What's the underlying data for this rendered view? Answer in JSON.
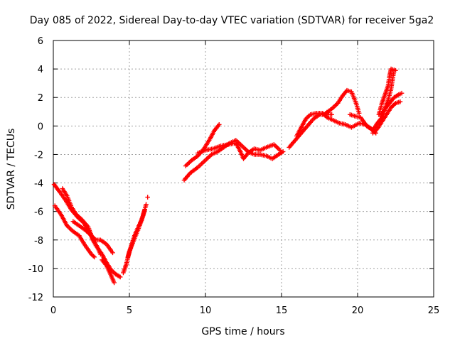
{
  "chart_data": {
    "type": "scatter",
    "title": "Day 085 of 2022, Sidereal Day-to-day VTEC variation (SDTVAR) for receiver 5ga2",
    "xlabel": "GPS time / hours",
    "ylabel": "SDTVAR / TECUs",
    "xlim": [
      0,
      25
    ],
    "ylim": [
      -12,
      6
    ],
    "xticks": [
      0,
      5,
      10,
      15,
      20,
      25
    ],
    "yticks": [
      -12,
      -10,
      -8,
      -6,
      -4,
      -2,
      0,
      2,
      4,
      6
    ],
    "grid": true,
    "marker": "plus",
    "color": "#ff0000",
    "tracks": [
      [
        [
          0.05,
          -4.1
        ],
        [
          0.4,
          -4.6
        ],
        [
          0.8,
          -5.2
        ],
        [
          1.2,
          -5.9
        ],
        [
          1.6,
          -6.4
        ],
        [
          2.0,
          -6.8
        ],
        [
          2.4,
          -7.5
        ],
        [
          2.8,
          -8.4
        ],
        [
          3.2,
          -9.0
        ],
        [
          3.5,
          -9.6
        ],
        [
          3.8,
          -10.1
        ],
        [
          4.1,
          -10.4
        ],
        [
          4.4,
          -10.6
        ]
      ],
      [
        [
          0.1,
          -5.6
        ],
        [
          0.5,
          -6.2
        ],
        [
          0.9,
          -7.0
        ],
        [
          1.3,
          -7.4
        ],
        [
          1.7,
          -7.7
        ],
        [
          2.1,
          -8.4
        ],
        [
          2.5,
          -9.0
        ],
        [
          2.7,
          -9.2
        ]
      ],
      [
        [
          0.6,
          -4.4
        ],
        [
          0.9,
          -4.9
        ],
        [
          1.2,
          -5.7
        ],
        [
          1.5,
          -6.2
        ],
        [
          1.9,
          -6.6
        ],
        [
          2.3,
          -7.1
        ],
        [
          2.6,
          -8.0
        ],
        [
          2.9,
          -8.5
        ],
        [
          3.1,
          -9.0
        ]
      ],
      [
        [
          1.3,
          -6.7
        ],
        [
          1.7,
          -7.0
        ],
        [
          2.1,
          -7.3
        ],
        [
          2.4,
          -7.6
        ],
        [
          2.8,
          -8.0
        ],
        [
          3.1,
          -8.0
        ],
        [
          3.5,
          -8.3
        ],
        [
          3.9,
          -8.9
        ]
      ],
      [
        [
          3.2,
          -9.4
        ],
        [
          3.5,
          -9.8
        ],
        [
          3.8,
          -10.5
        ],
        [
          4.0,
          -11.0
        ]
      ],
      [
        [
          4.6,
          -10.3
        ],
        [
          4.8,
          -9.7
        ],
        [
          5.0,
          -8.8
        ],
        [
          5.3,
          -8.0
        ],
        [
          5.6,
          -7.2
        ],
        [
          5.9,
          -6.3
        ],
        [
          6.1,
          -5.5
        ]
      ],
      [
        [
          4.9,
          -9.2
        ],
        [
          5.1,
          -8.5
        ],
        [
          5.3,
          -7.8
        ],
        [
          5.5,
          -7.3
        ],
        [
          5.8,
          -6.6
        ],
        [
          6.0,
          -5.9
        ]
      ],
      [
        [
          6.2,
          -5.0
        ]
      ],
      [
        [
          8.6,
          -3.8
        ],
        [
          9.0,
          -3.3
        ],
        [
          9.5,
          -2.9
        ],
        [
          10.0,
          -2.4
        ],
        [
          10.4,
          -2.0
        ],
        [
          10.8,
          -1.8
        ],
        [
          11.2,
          -1.5
        ],
        [
          11.6,
          -1.2
        ],
        [
          12.0,
          -1.0
        ],
        [
          12.4,
          -1.4
        ],
        [
          12.8,
          -1.8
        ],
        [
          13.2,
          -2.0
        ],
        [
          13.6,
          -2.0
        ],
        [
          14.0,
          -2.1
        ],
        [
          14.4,
          -2.3
        ],
        [
          14.8,
          -2.0
        ],
        [
          15.1,
          -1.8
        ]
      ],
      [
        [
          8.7,
          -2.8
        ],
        [
          9.1,
          -2.4
        ],
        [
          9.5,
          -2.1
        ],
        [
          9.9,
          -1.6
        ],
        [
          10.3,
          -0.9
        ],
        [
          10.6,
          -0.3
        ],
        [
          10.9,
          0.1
        ]
      ],
      [
        [
          9.5,
          -1.9
        ],
        [
          10.0,
          -1.7
        ],
        [
          10.5,
          -1.6
        ],
        [
          11.0,
          -1.4
        ],
        [
          11.5,
          -1.3
        ],
        [
          12.0,
          -1.2
        ],
        [
          12.3,
          -1.8
        ],
        [
          12.5,
          -2.3
        ],
        [
          12.8,
          -1.9
        ],
        [
          13.2,
          -1.6
        ],
        [
          13.6,
          -1.7
        ],
        [
          14.0,
          -1.5
        ],
        [
          14.5,
          -1.3
        ],
        [
          14.9,
          -1.7
        ]
      ],
      [
        [
          15.5,
          -1.5
        ],
        [
          15.9,
          -1.0
        ],
        [
          16.3,
          -0.5
        ],
        [
          16.7,
          0.0
        ],
        [
          17.1,
          0.5
        ],
        [
          17.5,
          0.8
        ],
        [
          17.9,
          0.8
        ],
        [
          18.3,
          0.8
        ]
      ],
      [
        [
          16.0,
          -0.7
        ],
        [
          16.3,
          -0.1
        ],
        [
          16.6,
          0.5
        ],
        [
          16.9,
          0.8
        ],
        [
          17.3,
          0.9
        ],
        [
          17.7,
          0.9
        ],
        [
          18.0,
          0.6
        ],
        [
          18.4,
          0.4
        ],
        [
          18.8,
          0.2
        ],
        [
          19.2,
          0.1
        ],
        [
          19.6,
          -0.1
        ],
        [
          20.1,
          0.2
        ],
        [
          20.5,
          0.1
        ],
        [
          20.9,
          -0.2
        ],
        [
          21.2,
          -0.5
        ]
      ],
      [
        [
          17.9,
          0.9
        ],
        [
          18.3,
          1.2
        ],
        [
          18.7,
          1.6
        ],
        [
          19.0,
          2.1
        ],
        [
          19.3,
          2.5
        ],
        [
          19.6,
          2.4
        ],
        [
          19.9,
          1.6
        ],
        [
          20.1,
          0.9
        ]
      ],
      [
        [
          19.5,
          0.8
        ],
        [
          19.8,
          0.7
        ],
        [
          20.2,
          0.6
        ],
        [
          20.6,
          0.0
        ],
        [
          21.0,
          -0.3
        ],
        [
          21.3,
          0.2
        ],
        [
          21.6,
          0.6
        ],
        [
          21.8,
          1.2
        ],
        [
          22.0,
          1.8
        ],
        [
          22.2,
          2.6
        ],
        [
          22.3,
          3.3
        ],
        [
          22.4,
          3.9
        ]
      ],
      [
        [
          21.4,
          0.8
        ],
        [
          21.6,
          1.6
        ],
        [
          21.8,
          2.2
        ],
        [
          22.0,
          2.8
        ],
        [
          22.1,
          3.5
        ],
        [
          22.2,
          4.0
        ],
        [
          22.5,
          3.9
        ]
      ],
      [
        [
          21.0,
          -0.5
        ],
        [
          21.3,
          -0.2
        ],
        [
          21.6,
          0.3
        ],
        [
          21.9,
          0.8
        ],
        [
          22.2,
          1.3
        ],
        [
          22.5,
          1.6
        ],
        [
          22.8,
          1.7
        ]
      ],
      [
        [
          21.5,
          0.7
        ],
        [
          21.8,
          1.2
        ],
        [
          22.1,
          1.6
        ],
        [
          22.4,
          2.0
        ],
        [
          22.7,
          2.2
        ],
        [
          22.9,
          2.3
        ]
      ]
    ]
  }
}
